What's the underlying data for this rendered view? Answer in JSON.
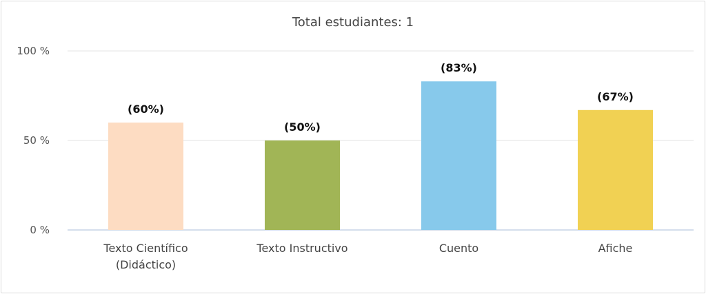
{
  "chart_data": {
    "type": "bar",
    "title": "Total estudiantes: 1",
    "categories": [
      [
        "Texto Científico",
        "(Didáctico)"
      ],
      [
        "Texto Instructivo"
      ],
      [
        "Cuento"
      ],
      [
        "Afiche"
      ]
    ],
    "values": [
      60,
      50,
      83,
      67
    ],
    "data_labels": [
      "(60%)",
      "(50%)",
      "(83%)",
      "(67%)"
    ],
    "colors": [
      "#fddcc2",
      "#a1b556",
      "#87c9eb",
      "#f1d153"
    ],
    "y_ticks": [
      0,
      50,
      100
    ],
    "y_tick_labels": [
      "0 %",
      "50 %",
      "100 %"
    ],
    "ylim": [
      0,
      100
    ],
    "xlabel": "",
    "ylabel": "",
    "grid": true,
    "legend": "none"
  }
}
